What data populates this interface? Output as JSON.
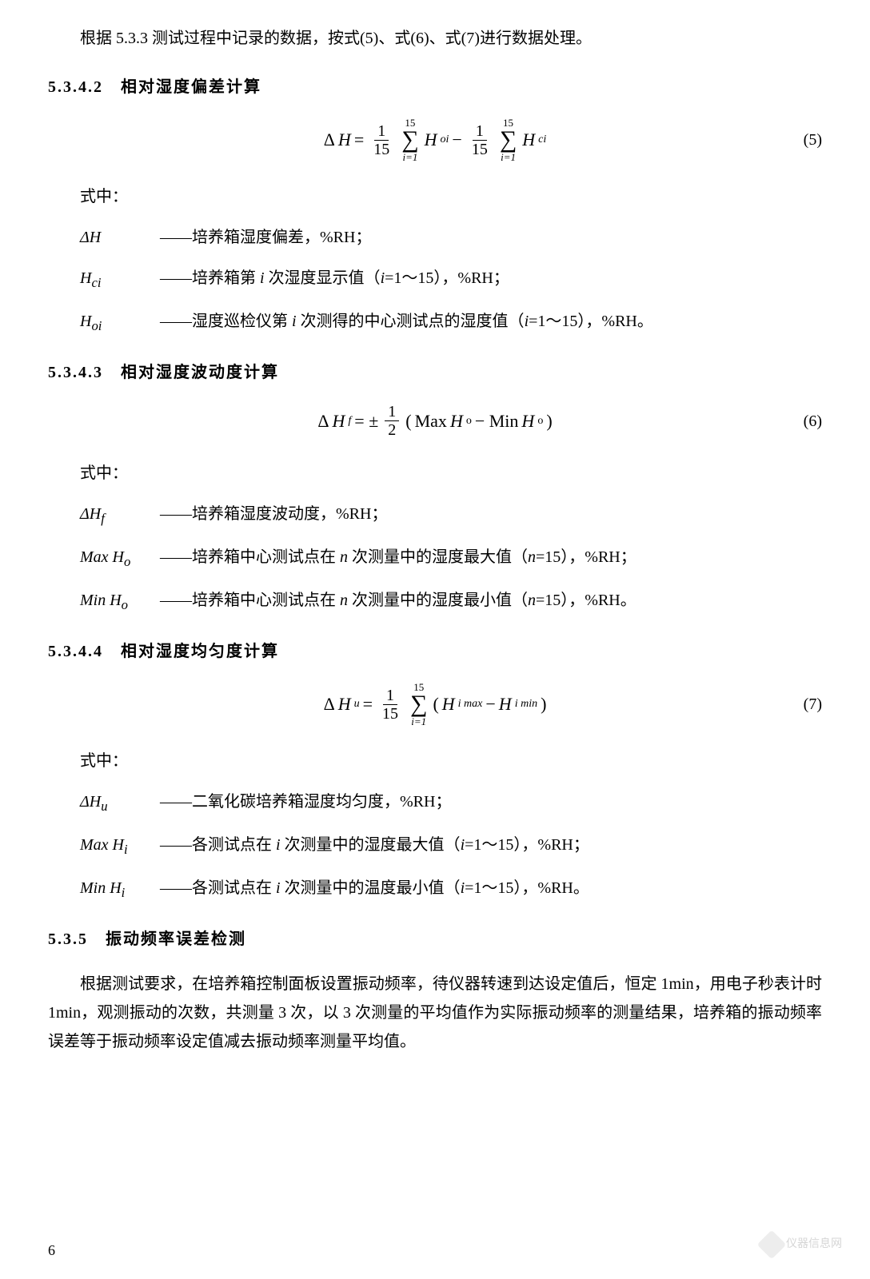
{
  "intro": "根据 5.3.3 测试过程中记录的数据，按式(5)、式(6)、式(7)进行数据处理。",
  "sec1": {
    "heading": "5.3.4.2　相对湿度偏差计算",
    "eq_num": "(5)",
    "where": "式中：",
    "defs": [
      {
        "sym": "Δ<i>H</i>",
        "text": "——培养箱湿度偏差，%RH；"
      },
      {
        "sym": "<i>H<sub>ci</sub></i>",
        "text": "——培养箱第 <i>i</i> 次湿度显示值（<i>i</i>=1～15），%RH；"
      },
      {
        "sym": "<i>H<sub>oi</sub></i>",
        "text": "——湿度巡检仪第 <i>i</i> 次测得的中心测试点的湿度值（<i>i</i>=1～15），%RH。"
      }
    ]
  },
  "sec2": {
    "heading": "5.3.4.3　相对湿度波动度计算",
    "eq_num": "(6)",
    "where": "式中：",
    "defs": [
      {
        "sym": "Δ<i>H<sub>f</sub></i>",
        "text": "——培养箱湿度波动度，%RH；"
      },
      {
        "sym": "Max <i>H</i><sub>o</sub>",
        "text": "——培养箱中心测试点在 <i>n</i> 次测量中的湿度最大值（<i>n</i>=15），%RH；"
      },
      {
        "sym": "Min <i>H</i><sub>o</sub>",
        "text": "——培养箱中心测试点在 <i>n</i> 次测量中的湿度最小值（<i>n</i>=15），%RH。"
      }
    ]
  },
  "sec3": {
    "heading": "5.3.4.4　相对湿度均匀度计算",
    "eq_num": "(7)",
    "where": "式中：",
    "defs": [
      {
        "sym": "Δ<i>H<sub>u</sub></i>",
        "text": "——二氧化碳培养箱湿度均匀度，%RH；"
      },
      {
        "sym": "Max <i>H<sub>i</sub></i>",
        "text": "——各测试点在 <i>i</i> 次测量中的湿度最大值（<i>i</i>=1～15），%RH；"
      },
      {
        "sym": "Min <i>H<sub>i</sub></i>",
        "text": "——各测试点在 <i>i</i> 次测量中的温度最小值（<i>i</i>=1～15），%RH。"
      }
    ]
  },
  "sec4": {
    "heading": "5.3.5　振动频率误差检测",
    "para": "根据测试要求，在培养箱控制面板设置振动频率，待仪器转速到达设定值后，恒定 1min，用电子秒表计时 1min，观测振动的次数，共测量 3 次，以 3 次测量的平均值作为实际振动频率的测量结果，培养箱的振动频率误差等于振动频率设定值减去振动频率测量平均值。"
  },
  "page_num": "6",
  "watermark": "仪器信息网"
}
